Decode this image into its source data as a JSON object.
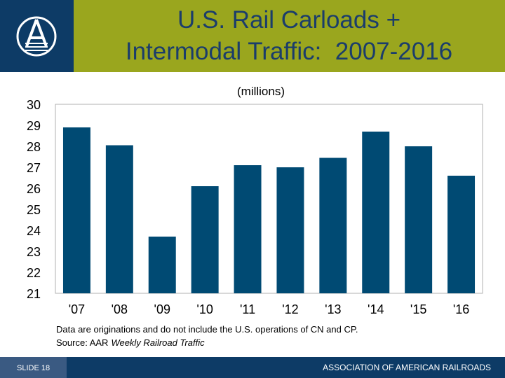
{
  "chart_data": {
    "type": "bar",
    "title": [
      "U.S. Rail Carloads +",
      "Intermodal Traffic:  2007-2016"
    ],
    "subtitle": "(millions)",
    "categories": [
      "'07",
      "'08",
      "'09",
      "'10",
      "'11",
      "'12",
      "'13",
      "'14",
      "'15",
      "'16"
    ],
    "values": [
      28.9,
      28.05,
      23.7,
      26.1,
      27.1,
      27.0,
      27.45,
      28.7,
      28.0,
      26.6
    ],
    "color": "#004a73",
    "ylim": [
      21,
      30
    ],
    "yticks": [
      21,
      22,
      23,
      24,
      25,
      26,
      27,
      28,
      29,
      30
    ],
    "grid": false
  },
  "notes": {
    "text": "Data are originations and do not include the U.S. operations of CN and CP.",
    "source": "Source: AAR",
    "source_title": "Weekly Railroad Traffic"
  },
  "footer": {
    "slide": "SLIDE 18",
    "org": "ASSOCIATION OF AMERICAN RAILROADS"
  }
}
